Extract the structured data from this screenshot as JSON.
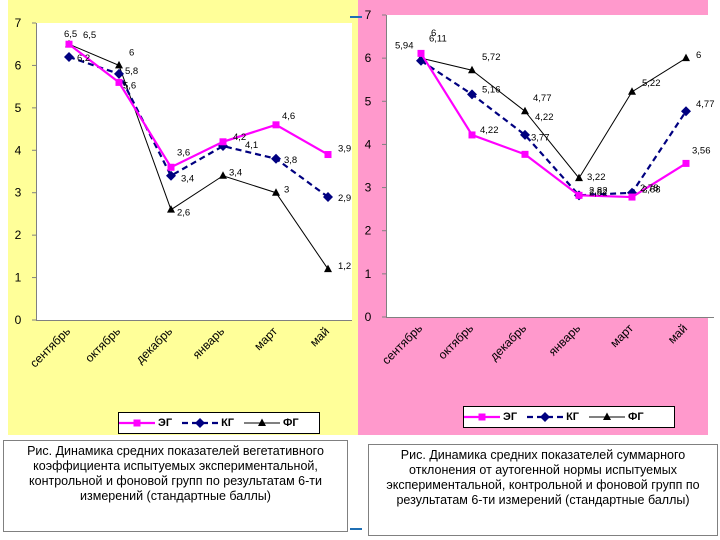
{
  "charts": [
    {
      "id": "left",
      "caption": "Рис. Динамика средних показателей вегетативного коэффициента испытуемых экспериментальной, контрольной и фоновой групп по результатам 6-ти измерений (стандартные баллы)"
    },
    {
      "id": "right",
      "caption": "Рис. Динамика средних показателей суммарного отклонения от аутогенной нормы испытуемых экспериментальной, контрольной и фоновой групп по результатам 6-ти измерений (стандартные баллы)"
    }
  ],
  "colors": {
    "eg": "#ff00ff",
    "kg": "#000080",
    "fg": "#000000",
    "left_bg": "#ffff99",
    "right_bg": "#ff99cc"
  },
  "chart_data": [
    {
      "type": "line",
      "categories": [
        "сентябрь",
        "октябрь",
        "декабрь",
        "январь",
        "март",
        "май"
      ],
      "ylim": [
        0,
        7
      ],
      "yticks": [
        "0",
        "1",
        "2",
        "3",
        "4",
        "5",
        "6",
        "7"
      ],
      "legend": [
        "ЭГ",
        "КГ",
        "ФГ"
      ],
      "series": [
        {
          "name": "ЭГ",
          "values": [
            6.5,
            5.6,
            3.6,
            4.2,
            4.6,
            3.9
          ],
          "labels": [
            "6,5",
            "5,6",
            "3,6",
            "4,2",
            "4,6",
            "3,9"
          ]
        },
        {
          "name": "КГ",
          "values": [
            6.2,
            5.8,
            3.4,
            4.1,
            3.8,
            2.9
          ],
          "labels": [
            "6,2",
            "5,8",
            "3,4",
            "4,1",
            "3,8",
            "2,9"
          ]
        },
        {
          "name": "ФГ",
          "values": [
            6.5,
            6.0,
            2.6,
            3.4,
            3.0,
            1.2
          ],
          "labels": [
            "6,5",
            "6",
            "2,6",
            "3,4",
            "3",
            "1,2"
          ]
        }
      ]
    },
    {
      "type": "line",
      "categories": [
        "сентябрь",
        "октябрь",
        "декабрь",
        "январь",
        "март",
        "май"
      ],
      "ylim": [
        0,
        7
      ],
      "yticks": [
        "0",
        "1",
        "2",
        "3",
        "4",
        "5",
        "6",
        "7"
      ],
      "legend": [
        "ЭГ",
        "КГ",
        "ФГ"
      ],
      "series": [
        {
          "name": "ЭГ",
          "values": [
            6.11,
            4.22,
            3.77,
            2.82,
            2.78,
            3.56
          ],
          "labels": [
            "6,11",
            "4,22",
            "3,77",
            "2,82",
            "2,78",
            "3,56"
          ]
        },
        {
          "name": "КГ",
          "values": [
            5.94,
            5.16,
            4.22,
            2.82,
            2.88,
            4.77
          ],
          "labels": [
            "5,94",
            "5,16",
            "4,22",
            "2,82",
            "2,88",
            "4,77"
          ]
        },
        {
          "name": "ФГ",
          "values": [
            6.0,
            5.72,
            4.77,
            3.22,
            5.22,
            6.0
          ],
          "labels": [
            "6",
            "5,72",
            "4,77",
            "3,22",
            "5,22",
            "6"
          ]
        }
      ]
    }
  ]
}
